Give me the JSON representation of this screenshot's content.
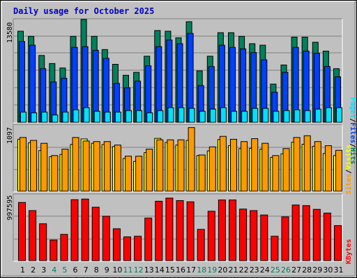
{
  "title": "Daily usage for October 2025",
  "colors": {
    "background": "#c0c0c0",
    "hits": "#00805c",
    "files": "#0040ff",
    "pages": "#00e0ff",
    "visits": "#ffff00",
    "sites": "#ff9900",
    "kbytes": "#ff0000",
    "weekday": "#000000",
    "weekend": "#00805c",
    "sep": "#000000"
  },
  "chart_data": [
    {
      "type": "bar",
      "name": "hits-files-pages",
      "y_label": "13580",
      "ylim": [
        0,
        14000
      ],
      "legend": [
        "Pages",
        "Files",
        "Hits"
      ],
      "series": [
        {
          "name": "Hits",
          "values": [
            12400,
            11700,
            9100,
            8000,
            7400,
            11700,
            14000,
            11700,
            9900,
            7900,
            6400,
            6800,
            9000,
            12500,
            12400,
            11500,
            13700,
            7000,
            9000,
            12200,
            12200,
            11700,
            10700,
            10500,
            5200,
            7800,
            11600,
            11600,
            10900,
            9700,
            7300
          ]
        },
        {
          "name": "Files",
          "values": [
            11000,
            10500,
            7300,
            5500,
            6000,
            10200,
            10300,
            9800,
            8700,
            5300,
            4700,
            5600,
            7700,
            10300,
            11200,
            10700,
            12100,
            5000,
            7600,
            10500,
            10200,
            10000,
            9500,
            8500,
            4100,
            6800,
            10200,
            9700,
            9400,
            7600,
            6200
          ]
        },
        {
          "name": "Pages",
          "values": [
            1400,
            1300,
            1400,
            1000,
            1400,
            1700,
            2000,
            1500,
            1400,
            1400,
            1600,
            1600,
            1300,
            1600,
            2000,
            2000,
            1900,
            1500,
            1800,
            2000,
            1500,
            1500,
            1900,
            1900,
            1500,
            1600,
            1700,
            1600,
            1800,
            2000,
            2000
          ]
        }
      ]
    },
    {
      "type": "bar",
      "name": "visits-sites",
      "y_label": "1097",
      "ylim": [
        0,
        1097
      ],
      "legend": [
        "Sites",
        "Visits"
      ],
      "series": [
        {
          "name": "Visits",
          "values": [
            890,
            830,
            695,
            590,
            630,
            800,
            895,
            820,
            800,
            765,
            560,
            510,
            660,
            905,
            835,
            790,
            870,
            610,
            690,
            885,
            780,
            730,
            735,
            720,
            580,
            640,
            840,
            805,
            770,
            645,
            610
          ]
        },
        {
          "name": "Sites",
          "values": [
            920,
            870,
            820,
            610,
            720,
            920,
            860,
            850,
            850,
            790,
            600,
            600,
            720,
            880,
            880,
            880,
            1090,
            620,
            760,
            940,
            890,
            850,
            900,
            820,
            610,
            730,
            920,
            950,
            850,
            780,
            700
          ]
        }
      ]
    },
    {
      "type": "bar",
      "name": "kbytes",
      "y_label": "997595",
      "ylim": [
        0,
        1000000
      ],
      "legend": [
        "KBytes"
      ],
      "series": [
        {
          "name": "KBytes",
          "values": [
            930000,
            800000,
            590000,
            330000,
            420000,
            975000,
            985000,
            855000,
            710000,
            510000,
            380000,
            390000,
            680000,
            950000,
            1000000,
            960000,
            940000,
            500000,
            790000,
            970000,
            970000,
            825000,
            800000,
            730000,
            390000,
            700000,
            890000,
            880000,
            820000,
            760000,
            560000
          ]
        }
      ]
    }
  ],
  "days": [
    "1",
    "2",
    "3",
    "4",
    "5",
    "6",
    "7",
    "8",
    "9",
    "10",
    "11",
    "12",
    "13",
    "14",
    "15",
    "16",
    "17",
    "18",
    "19",
    "20",
    "21",
    "22",
    "23",
    "24",
    "25",
    "26",
    "27",
    "28",
    "29",
    "30",
    "31"
  ],
  "weekend_days": [
    4,
    5,
    11,
    12,
    18,
    19,
    25,
    26
  ],
  "sep": "/"
}
